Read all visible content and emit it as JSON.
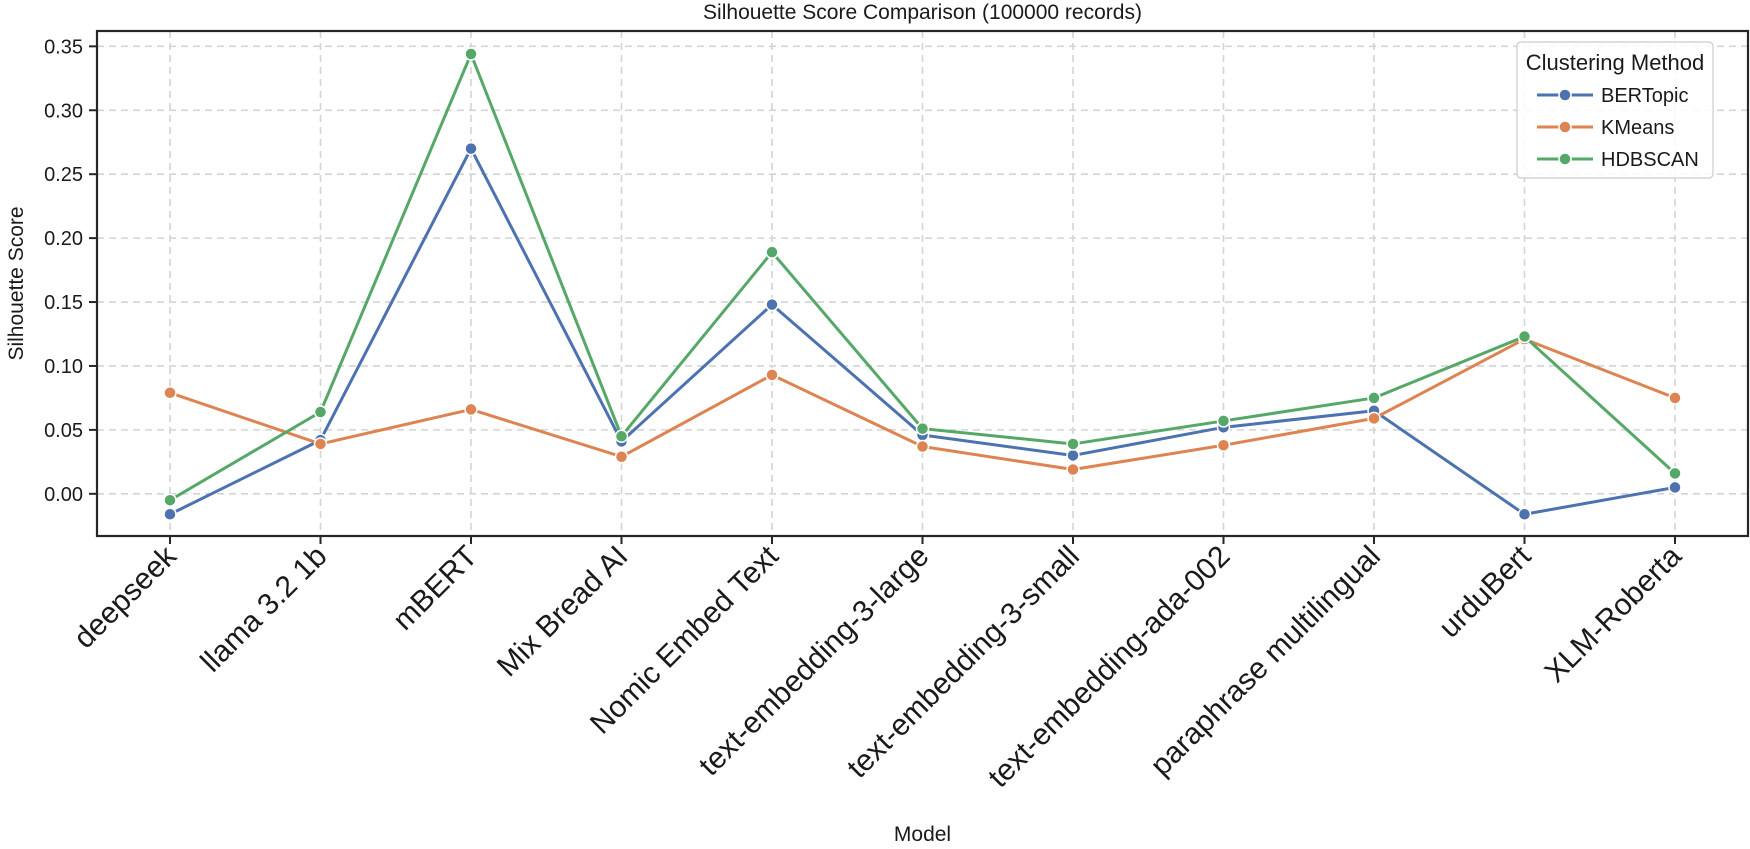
{
  "chart_data": {
    "type": "line",
    "title": "Silhouette Score Comparison (100000 records)",
    "xlabel": "Model",
    "ylabel": "Silhouette Score",
    "categories": [
      "deepseek",
      "llama 3.2 1b",
      "mBERT",
      "Mix Bread AI",
      "Nomic Embed Text",
      "text-embedding-3-large",
      "text-embedding-3-small",
      "text-embedding-ada-002",
      "paraphrase multilingual",
      "urduBert",
      "XLM-Roberta"
    ],
    "ylim": [
      -0.033,
      0.362
    ],
    "yticks": [
      0.0,
      0.05,
      0.1,
      0.15,
      0.2,
      0.25,
      0.3,
      0.35
    ],
    "ytick_labels": [
      "0.00",
      "0.05",
      "0.10",
      "0.15",
      "0.20",
      "0.25",
      "0.30",
      "0.35"
    ],
    "grid": true,
    "legend": {
      "title": "Clustering Method",
      "position": "top-right"
    },
    "series": [
      {
        "name": "BERTopic",
        "color": "#4c72b0",
        "values": [
          -0.016,
          0.042,
          0.27,
          0.041,
          0.148,
          0.046,
          0.03,
          0.052,
          0.065,
          -0.016,
          0.005
        ]
      },
      {
        "name": "KMeans",
        "color": "#dd8452",
        "values": [
          0.079,
          0.039,
          0.066,
          0.029,
          0.093,
          0.037,
          0.019,
          0.038,
          0.059,
          0.121,
          0.075
        ]
      },
      {
        "name": "HDBSCAN",
        "color": "#55a868",
        "values": [
          -0.005,
          0.064,
          0.344,
          0.045,
          0.189,
          0.051,
          0.039,
          0.057,
          0.075,
          0.123,
          0.016
        ]
      }
    ]
  }
}
